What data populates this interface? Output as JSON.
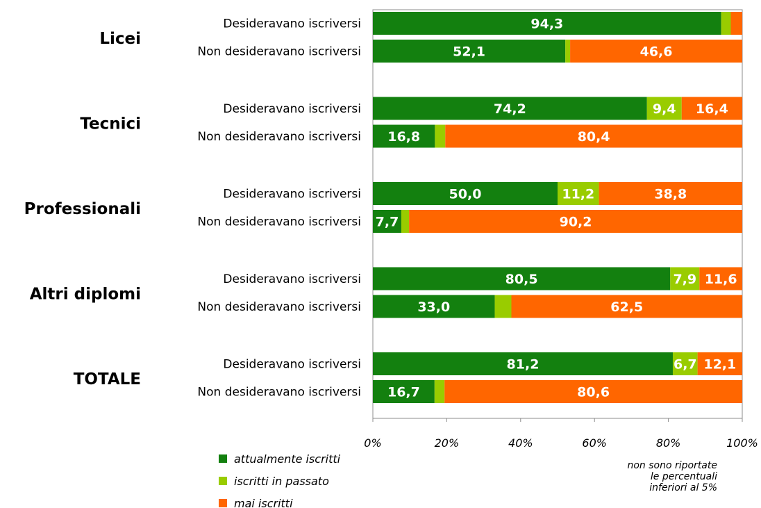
{
  "chart_data": {
    "type": "bar",
    "orientation": "horizontal",
    "stacked": true,
    "groups": [
      "Licei",
      "Tecnici",
      "Professionali",
      "Altri diplomi",
      "TOTALE"
    ],
    "rows_per_group": [
      "Desideravano iscriversi",
      "Non desideravano iscriversi"
    ],
    "series": [
      {
        "name": "attualmente iscritti",
        "color": "#13800f"
      },
      {
        "name": "iscritti in passato",
        "color": "#99cc00"
      },
      {
        "name": "mai iscritti",
        "color": "#ff6600"
      }
    ],
    "rows": [
      {
        "group": 0,
        "label": "Desideravano iscriversi",
        "values": [
          94.3,
          2.6,
          3.1
        ],
        "labels": [
          "94,3",
          "",
          ""
        ]
      },
      {
        "group": 0,
        "label": "Non desideravano iscriversi",
        "values": [
          52.1,
          1.3,
          46.6
        ],
        "labels": [
          "52,1",
          "",
          "46,6"
        ]
      },
      {
        "group": 1,
        "label": "Desideravano iscriversi",
        "values": [
          74.2,
          9.4,
          16.4
        ],
        "labels": [
          "74,2",
          "9,4",
          "16,4"
        ]
      },
      {
        "group": 1,
        "label": "Non desideravano iscriversi",
        "values": [
          16.8,
          2.8,
          80.4
        ],
        "labels": [
          "16,8",
          "",
          "80,4"
        ]
      },
      {
        "group": 2,
        "label": "Desideravano iscriversi",
        "values": [
          50.0,
          11.2,
          38.8
        ],
        "labels": [
          "50,0",
          "11,2",
          "38,8"
        ]
      },
      {
        "group": 2,
        "label": "Non desideravano iscriversi",
        "values": [
          7.7,
          2.1,
          90.2
        ],
        "labels": [
          "7,7",
          "",
          "90,2"
        ]
      },
      {
        "group": 3,
        "label": "Desideravano iscriversi",
        "values": [
          80.5,
          7.9,
          11.6
        ],
        "labels": [
          "80,5",
          "7,9",
          "11,6"
        ]
      },
      {
        "group": 3,
        "label": "Non desideravano iscriversi",
        "values": [
          33.0,
          4.5,
          62.5
        ],
        "labels": [
          "33,0",
          "",
          "62,5"
        ]
      },
      {
        "group": 4,
        "label": "Desideravano iscriversi",
        "values": [
          81.2,
          6.7,
          12.1
        ],
        "labels": [
          "81,2",
          "6,7",
          "12,1"
        ]
      },
      {
        "group": 4,
        "label": "Non desideravano iscriversi",
        "values": [
          16.7,
          2.7,
          80.6
        ],
        "labels": [
          "16,7",
          "",
          "80,6"
        ]
      }
    ],
    "x_ticks": [
      0,
      20,
      40,
      60,
      80,
      100
    ],
    "x_tick_labels": [
      "0%",
      "20%",
      "40%",
      "60%",
      "80%",
      "100%"
    ],
    "xlim": [
      0,
      100
    ],
    "grid": false,
    "legend_position": "bottom-left",
    "legend": [
      "attualmente iscritti",
      "iscritti in passato",
      "mai iscritti"
    ],
    "note": [
      "non sono riportate",
      "le percentuali",
      "inferiori al 5%"
    ]
  }
}
